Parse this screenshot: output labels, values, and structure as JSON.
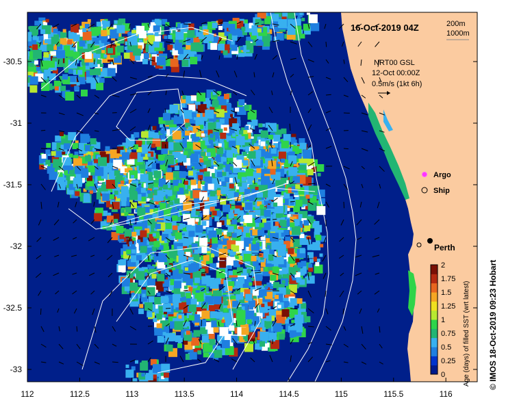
{
  "map": {
    "timestamp": "16-Oct-2019 04Z",
    "contour_legend": [
      "200m",
      "1000m"
    ],
    "product": "NRT00 GSL",
    "product_date": "12-Oct 00:00Z",
    "vector_scale": "0.5m/s (1kt 6h)",
    "markers": {
      "argo": "Argo",
      "ship": "Ship"
    },
    "city": "Perth",
    "x_axis": {
      "ticks": [
        "112",
        "112.5",
        "113",
        "113.5",
        "114",
        "114.5",
        "115",
        "115.5",
        "116"
      ],
      "range": [
        112,
        116.3
      ]
    },
    "y_axis": {
      "ticks": [
        "-30.5",
        "-31",
        "-31.5",
        "-32",
        "-32.5",
        "-33"
      ],
      "range": [
        -33.1,
        -30.1
      ]
    },
    "colorbar": {
      "label": "Age (days) of filled SST (wrt latest)",
      "ticks": [
        "2",
        "1.75",
        "1.5",
        "1.25",
        "1",
        "0.75",
        "0.5",
        "0.25",
        "0"
      ],
      "colors": [
        "#001a8c",
        "#0033cc",
        "#1f7fe0",
        "#38b0ef",
        "#22b573",
        "#2fd44a",
        "#b8e830",
        "#f0e020",
        "#f5a623",
        "#e8661f",
        "#b52a10",
        "#7a1005"
      ]
    },
    "credit": "© IMOS 18-Oct-2019 09:23 Hobart",
    "colors": {
      "land": "#fbcba0",
      "ocean": "#001f8a",
      "no_data": "#ffffff"
    }
  }
}
